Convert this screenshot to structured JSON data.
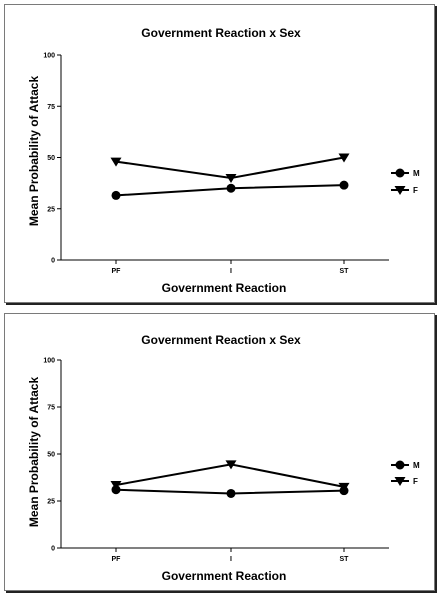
{
  "chart_data": [
    {
      "type": "line",
      "title": "Government Reaction x Sex",
      "xlabel": "Government Reaction",
      "ylabel": "Mean Probability of Attack",
      "categories": [
        "PF",
        "I",
        "ST"
      ],
      "ylim": [
        0,
        100
      ],
      "yticks": [
        "0",
        "25",
        "50",
        "75",
        "100"
      ],
      "grid": false,
      "legend_position": "right",
      "series": [
        {
          "name": "M",
          "values": [
            31.5,
            35,
            36.5
          ],
          "marker": "circle"
        },
        {
          "name": "F",
          "values": [
            48,
            40,
            50
          ],
          "marker": "triangle-down"
        }
      ]
    },
    {
      "type": "line",
      "title": "Government Reaction x Sex",
      "xlabel": "Government Reaction",
      "ylabel": "Mean Probability of Attack",
      "categories": [
        "PF",
        "I",
        "ST"
      ],
      "ylim": [
        0,
        100
      ],
      "yticks": [
        "0",
        "25",
        "50",
        "75",
        "100"
      ],
      "grid": false,
      "legend_position": "right",
      "series": [
        {
          "name": "M",
          "values": [
            31,
            29,
            30.5
          ],
          "marker": "circle"
        },
        {
          "name": "F",
          "values": [
            33.5,
            44.5,
            32.5
          ],
          "marker": "triangle-down"
        }
      ]
    }
  ]
}
